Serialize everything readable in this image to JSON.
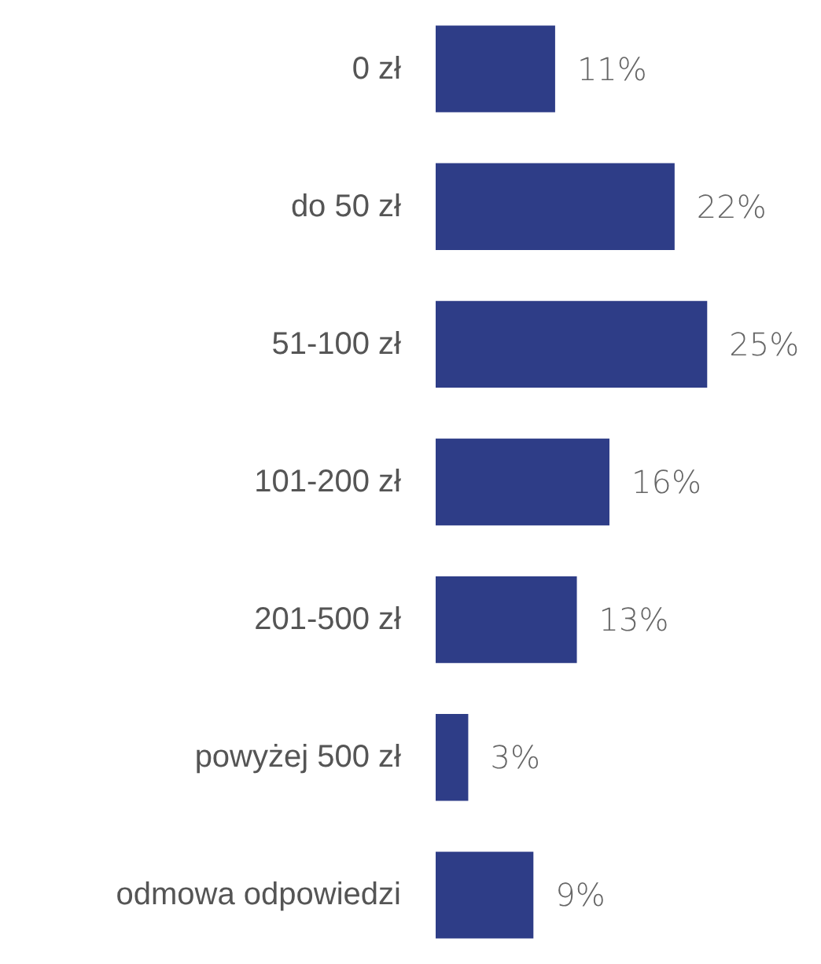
{
  "chart_data": {
    "type": "bar",
    "orientation": "horizontal",
    "categories": [
      "0 zł",
      "do 50 zł",
      "51-100 zł",
      "101-200 zł",
      "201-500 zł",
      "powyżej 500 zł",
      "odmowa odpowiedzi"
    ],
    "values": [
      11,
      22,
      25,
      16,
      13,
      3,
      9
    ],
    "value_labels": [
      "11%",
      "22%",
      "25%",
      "16%",
      "13%",
      "3%",
      "9%"
    ],
    "color": "#2e3d87"
  }
}
